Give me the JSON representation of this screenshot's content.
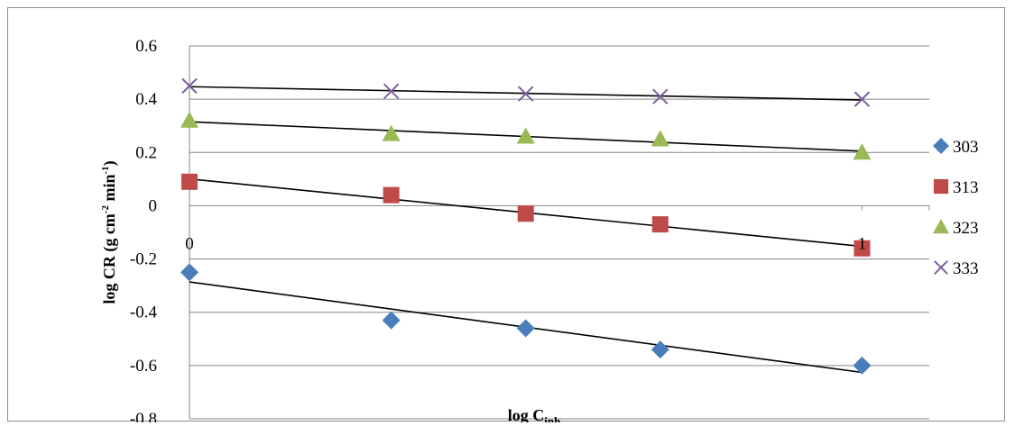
{
  "chart_data": {
    "type": "scatter",
    "xlabel": "log C",
    "xlabel_sub": "inh",
    "ylabel": "log CR (g cm",
    "ylabel_sup1": "-2",
    "ylabel_mid": " min",
    "ylabel_sup2": "-1",
    "ylabel_end": ")",
    "xlim": [
      0,
      1.1
    ],
    "ylim": [
      -0.8,
      0.6
    ],
    "yticks": [
      0.6,
      0.4,
      0.2,
      0,
      -0.2,
      -0.4,
      -0.6,
      -0.8
    ],
    "ytick_labels": [
      "0.6",
      "0.4",
      "0.2",
      "0",
      "-0.2",
      "-0.4",
      "-0.6",
      "-0.8"
    ],
    "xticks": [
      0,
      1
    ],
    "xtick_labels": [
      "0",
      "1"
    ],
    "grid": "horizontal",
    "legend_position": "right",
    "trendlines": true,
    "x": [
      0,
      0.3,
      0.5,
      0.7,
      1.0
    ],
    "series": [
      {
        "name": "303",
        "marker": "diamond",
        "color": "#4a7ebb",
        "values": [
          -0.25,
          -0.43,
          -0.46,
          -0.54,
          -0.6
        ]
      },
      {
        "name": "313",
        "marker": "square",
        "color": "#be4b48",
        "values": [
          0.09,
          0.04,
          -0.03,
          -0.07,
          -0.16
        ]
      },
      {
        "name": "323",
        "marker": "triangle",
        "color": "#98b954",
        "values": [
          0.32,
          0.27,
          0.26,
          0.25,
          0.2
        ]
      },
      {
        "name": "333",
        "marker": "x",
        "color": "#7d60a0",
        "values": [
          0.45,
          0.43,
          0.42,
          0.41,
          0.4
        ]
      }
    ]
  }
}
